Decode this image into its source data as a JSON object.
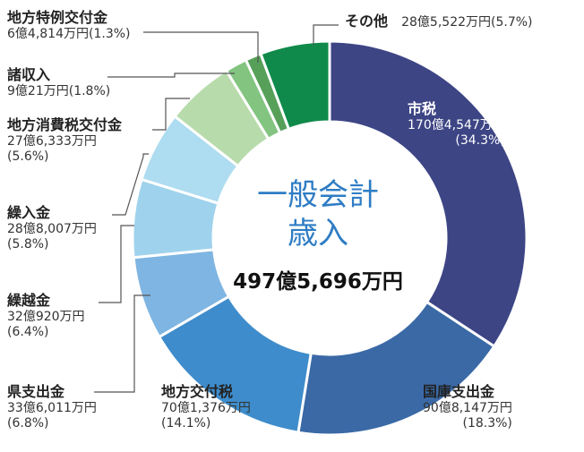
{
  "chart_data": {
    "type": "pie",
    "title": "",
    "center_title_lines": [
      "一般会計",
      "歳入"
    ],
    "center_total": "497億5,696万円",
    "slices": [
      {
        "name": "市税",
        "amount": "170億4,547万円",
        "percent_label": "(34.3%)",
        "value": 34.3,
        "color": "#3d4585"
      },
      {
        "name": "国庫支出金",
        "amount": "90億8,147万円",
        "percent_label": "(18.3%)",
        "value": 18.3,
        "color": "#3a69a6"
      },
      {
        "name": "地方交付税",
        "amount": "70億1,376万円",
        "percent_label": "(14.1%)",
        "value": 14.1,
        "color": "#3e8ccb"
      },
      {
        "name": "県支出金",
        "amount": "33億6,011万円",
        "percent_label": "(6.8%)",
        "value": 6.8,
        "color": "#7fb5e2"
      },
      {
        "name": "繰越金",
        "amount": "32億920万円",
        "percent_label": "(6.4%)",
        "value": 6.4,
        "color": "#9fd2ec"
      },
      {
        "name": "繰入金",
        "amount": "28億8,007万円",
        "percent_label": "(5.8%)",
        "value": 5.8,
        "color": "#aedcf0"
      },
      {
        "name": "地方消費税交付金",
        "amount": "27億6,333万円",
        "percent_label": "(5.6%)",
        "value": 5.6,
        "color": "#b8dbab"
      },
      {
        "name": "諸収入",
        "amount": "9億21万円",
        "percent_label": "(1.8%)",
        "value": 1.8,
        "color": "#82c480"
      },
      {
        "name": "地方特例交付金",
        "amount": "6億4,814万円",
        "percent_label": "(1.3%)",
        "value": 1.3,
        "color": "#56a05a"
      },
      {
        "name": "その他",
        "amount": "28億5,522万円",
        "percent_label": "(5.7%)",
        "value": 5.7,
        "color": "#0f8a4a"
      }
    ],
    "extra_slice": {
      "value": 0,
      "color": "#2f5c3a"
    }
  }
}
